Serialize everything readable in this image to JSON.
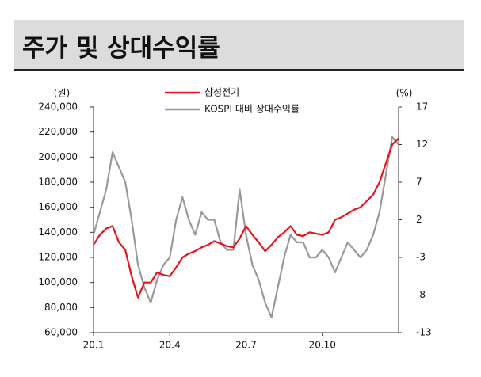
{
  "title": "주가 및 상대수익률",
  "chart_data": {
    "type": "line",
    "y_unit": "(원)",
    "y2_unit": "(%)",
    "x": [
      0,
      0.25,
      0.5,
      0.75,
      1,
      1.25,
      1.5,
      1.75,
      2,
      2.25,
      2.5,
      2.75,
      3,
      3.25,
      3.5,
      3.75,
      4,
      4.25,
      4.5,
      4.75,
      5,
      5.25,
      5.5,
      5.75,
      6,
      6.25,
      6.5,
      6.75,
      7,
      7.25,
      7.5,
      7.75,
      8,
      8.25,
      8.5,
      8.75,
      9,
      9.25,
      9.5,
      9.75,
      10,
      10.25,
      10.5,
      10.75,
      11,
      11.25,
      11.5,
      11.75,
      12
    ],
    "xlim": [
      0,
      12
    ],
    "xticks": [
      {
        "value": 0,
        "label": "20.1"
      },
      {
        "value": 3,
        "label": "20.4"
      },
      {
        "value": 6,
        "label": "20.7"
      },
      {
        "value": 9,
        "label": "20.10"
      }
    ],
    "ylim": [
      60000,
      240000
    ],
    "yticks": [
      {
        "value": 60000,
        "label": "60,000"
      },
      {
        "value": 80000,
        "label": "80,000"
      },
      {
        "value": 100000,
        "label": "100,000"
      },
      {
        "value": 120000,
        "label": "120,000"
      },
      {
        "value": 140000,
        "label": "140,000"
      },
      {
        "value": 160000,
        "label": "160,000"
      },
      {
        "value": 180000,
        "label": "180,000"
      },
      {
        "value": 200000,
        "label": "200,000"
      },
      {
        "value": 220000,
        "label": "220,000"
      },
      {
        "value": 240000,
        "label": "240,000"
      }
    ],
    "y2lim": [
      -13,
      17
    ],
    "y2ticks": [
      -13,
      -8,
      -3,
      2,
      7,
      12,
      17
    ],
    "series": [
      {
        "name": "KOSPI 대비 상대수익률",
        "color": "#999999",
        "axis": "y2",
        "values": [
          0,
          3,
          6,
          11,
          9,
          7,
          2,
          -4,
          -7,
          -9,
          -6,
          -4,
          -3,
          2,
          5,
          2,
          0,
          3,
          2,
          2,
          -1,
          -2,
          -2,
          6,
          0,
          -4,
          -6,
          -9,
          -11,
          -7,
          -3,
          0,
          -1,
          -1,
          -3,
          -3,
          -2,
          -3,
          -5,
          -3,
          -1,
          -2,
          -3,
          -2,
          0,
          3,
          8,
          13,
          12
        ]
      },
      {
        "name": "삼성전기",
        "color": "#e8141c",
        "values": [
          130000,
          138000,
          143000,
          145000,
          132000,
          126000,
          105000,
          88000,
          100000,
          100000,
          108000,
          106000,
          105000,
          112000,
          120000,
          123000,
          125000,
          128000,
          130000,
          133000,
          131000,
          129000,
          128000,
          135000,
          145000,
          138000,
          132000,
          125000,
          130000,
          136000,
          140000,
          145000,
          138000,
          137000,
          140000,
          139000,
          138000,
          140000,
          150000,
          152000,
          155000,
          158000,
          160000,
          165000,
          170000,
          180000,
          195000,
          210000,
          215000
        ]
      }
    ]
  }
}
